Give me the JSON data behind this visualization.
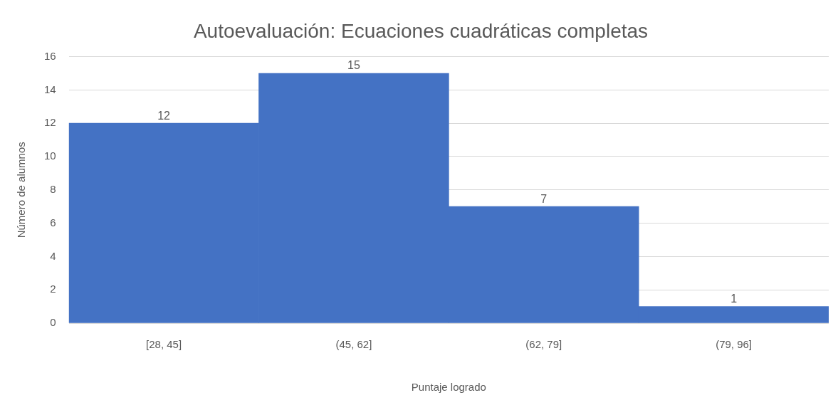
{
  "chart_data": {
    "type": "bar",
    "title": "Autoevaluación: Ecuaciones cuadráticas completas",
    "xlabel": "Puntaje logrado",
    "ylabel": "Número de alumnos",
    "categories": [
      "[28, 45]",
      "(45, 62]",
      "(62, 79]",
      "(79, 96]"
    ],
    "values": [
      12,
      15,
      7,
      1
    ],
    "color": "#4472c4",
    "ylim": [
      0,
      16
    ],
    "yticks": [
      0,
      2,
      4,
      6,
      8,
      10,
      12,
      14,
      16
    ],
    "grid": "y",
    "data_labels": true
  }
}
